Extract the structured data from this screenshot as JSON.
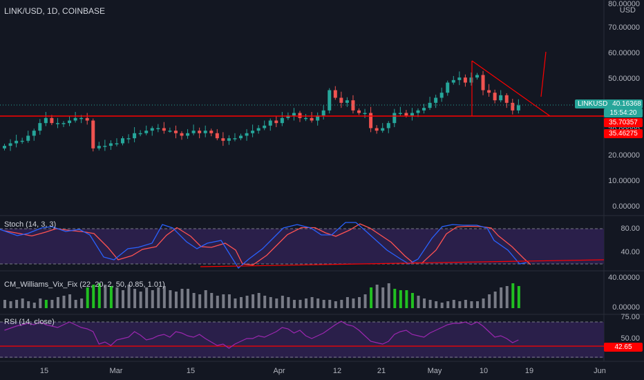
{
  "symbol_title": "LINK/USD, 1D, COINBASE",
  "currency": "USD",
  "price_axis": [
    "80.00000",
    "70.00000",
    "60.00000",
    "50.00000",
    "40.00000",
    "30.00000",
    "20.00000",
    "10.00000",
    "0.00000"
  ],
  "price_tags": {
    "symbol": "LINKUSD",
    "price": "40.16368",
    "countdown": "15:54:20",
    "line1": "35.70357",
    "line2": "35.46275"
  },
  "indicators": {
    "stoch": {
      "title": "Stoch (14, 3, 3)",
      "axis": [
        "80.00",
        "40.00"
      ]
    },
    "vix": {
      "title": "CM_Williams_Vix_Fix (22, 20, 2, 50, 0.85, 1.01)",
      "axis": [
        "40.00000",
        "0.00000"
      ]
    },
    "rsi": {
      "title": "RSI (14, close)",
      "axis": [
        "75.00",
        "50.00"
      ],
      "value": "42.65"
    }
  },
  "time_axis": [
    "15",
    "Mar",
    "15",
    "Apr",
    "12",
    "21",
    "May",
    "10",
    "19",
    "Jun"
  ],
  "colors": {
    "up": "#26a69a",
    "down": "#ef5350",
    "stoch_k": "#2962ff",
    "stoch_d": "#ff5252",
    "rsi": "#9c27b0",
    "band": "#2a1f4a",
    "vix_up": "#21c021",
    "vix_norm": "#787b86",
    "line": "#ff0000",
    "bg": "#131722"
  },
  "chart_data": {
    "type": "candlestick",
    "closes": [
      24,
      25,
      26,
      26,
      28,
      30,
      33,
      35,
      33,
      33,
      33,
      34,
      35,
      35,
      34,
      23,
      24,
      24,
      25,
      25,
      27,
      27,
      29,
      29,
      30,
      31,
      31,
      30,
      30,
      29,
      28,
      29,
      30,
      29,
      30,
      29,
      27,
      26,
      27,
      27,
      28,
      29,
      30,
      31,
      32,
      34,
      33,
      35,
      36,
      37,
      35,
      35,
      34,
      36,
      38,
      46,
      43,
      41,
      42,
      38,
      37,
      37,
      31,
      30,
      31,
      33,
      37,
      37,
      36,
      37,
      38,
      39,
      41,
      43,
      45,
      49,
      50,
      51,
      49,
      51,
      52,
      46,
      45,
      42,
      44,
      41,
      38,
      40
    ]
  }
}
